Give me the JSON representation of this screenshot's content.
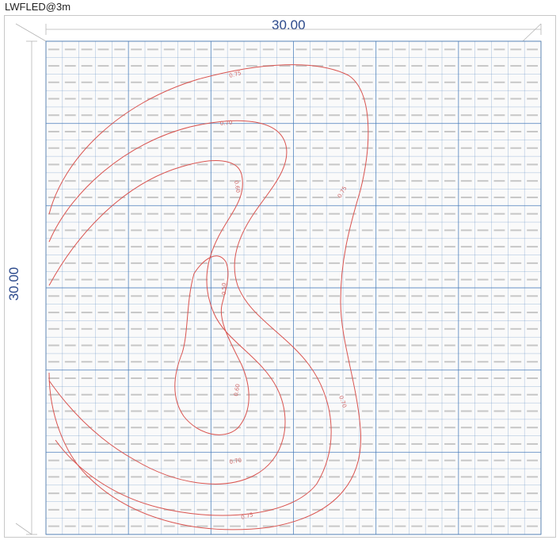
{
  "header": {
    "title": "LWFLED@3m"
  },
  "dimensions": {
    "width_label": "30.00",
    "height_label": "30.00"
  },
  "colors": {
    "grid": "#4a7ebb",
    "contour": "#d9534f",
    "values": "#8a8a8a",
    "dimension": "#2c4a8c"
  },
  "grid": {
    "rows": 30,
    "cols": 30
  },
  "contours": [
    {
      "label": "0.75"
    },
    {
      "label": "0.70"
    },
    {
      "label": "0.60"
    },
    {
      "label": "0.50"
    }
  ],
  "cell_values_sample": "0.30 - 0.80 (illuminance values in each cell)"
}
